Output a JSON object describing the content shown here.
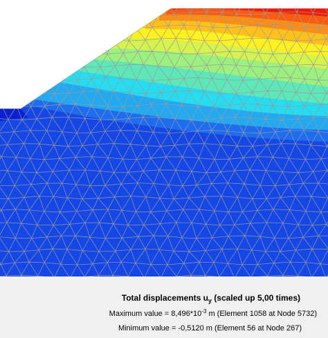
{
  "plot": {
    "contour_colors": [
      "#1546e6",
      "#1e6cf0",
      "#22a9f2",
      "#26dcf0",
      "#5ee8b9",
      "#9cf07f",
      "#d6f24e",
      "#fff01f",
      "#ffc11a",
      "#ff8e16",
      "#ff5a10",
      "#f01c08"
    ],
    "mesh_color": "#9a9a9a",
    "background": "#ffffff"
  },
  "legend": {
    "title_prefix": "Total displacements u",
    "title_subscript": "y",
    "title_suffix": " (scaled up 5,00 times)",
    "max_prefix": "Maximum value = 8,496*10",
    "max_exponent": "-3",
    "max_suffix": " m (Element 1058 at Node 5732)",
    "min_text": "Minimum value = -0,5120 m (Element 56 at Node 267)"
  }
}
